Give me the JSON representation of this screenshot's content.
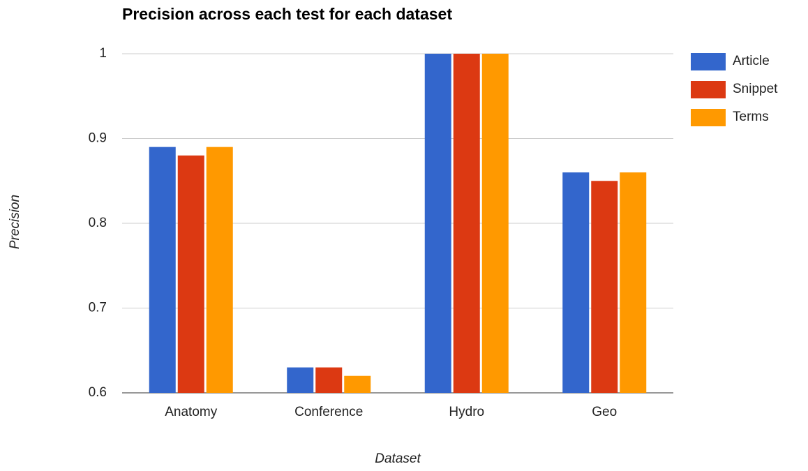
{
  "chart_data": {
    "type": "bar",
    "title": "Precision across each test for each dataset",
    "x_label": "Dataset",
    "y_label": "Precision",
    "categories": [
      "Anatomy",
      "Conference",
      "Hydro",
      "Geo"
    ],
    "series": [
      {
        "name": "Article",
        "color": "#3366cc",
        "values": [
          0.89,
          0.63,
          1,
          0.86
        ]
      },
      {
        "name": "Snippet",
        "color": "#dc3912",
        "values": [
          0.88,
          0.63,
          1,
          0.85
        ]
      },
      {
        "name": "Terms",
        "color": "#ff9900",
        "values": [
          0.89,
          0.62,
          1,
          0.86
        ]
      }
    ],
    "ylim": [
      0.6,
      1
    ],
    "yticks": [
      0.6,
      0.7,
      0.8,
      0.9,
      1
    ],
    "grid": true,
    "legend": "right"
  }
}
